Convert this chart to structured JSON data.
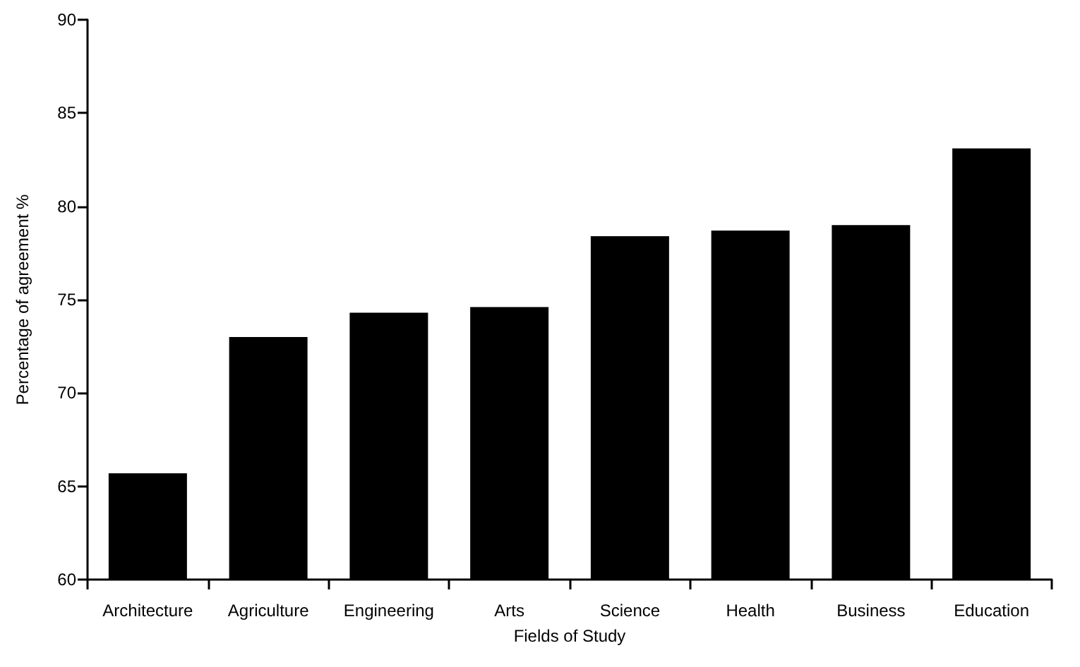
{
  "chart_data": {
    "type": "bar",
    "xlabel": "Fields of Study",
    "ylabel": "Percentage of agreement %",
    "categories": [
      "Architecture",
      "Agriculture",
      "Engineering",
      "Arts",
      "Science",
      "Health",
      "Business",
      "Education"
    ],
    "values": [
      65.7,
      73.0,
      74.3,
      74.6,
      78.4,
      78.7,
      79.0,
      83.1
    ],
    "color": "#000000",
    "ylim": [
      60,
      90
    ],
    "yticks": [
      60,
      65,
      70,
      75,
      80,
      85,
      90
    ],
    "grid": false
  }
}
